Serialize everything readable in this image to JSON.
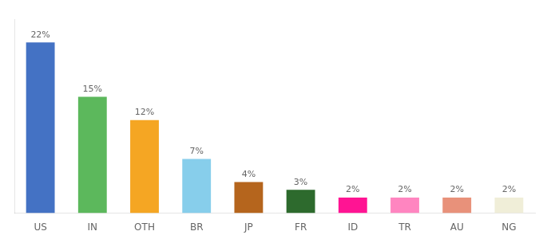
{
  "chart_data": {
    "type": "bar",
    "categories": [
      "US",
      "IN",
      "OTH",
      "BR",
      "JP",
      "FR",
      "ID",
      "TR",
      "AU",
      "NG"
    ],
    "values": [
      22,
      15,
      12,
      7,
      4,
      3,
      2,
      2,
      2,
      2
    ],
    "value_labels": [
      "22%",
      "15%",
      "12%",
      "7%",
      "4%",
      "3%",
      "2%",
      "2%",
      "2%",
      "2%"
    ],
    "colors": [
      "#4472c4",
      "#5cb85c",
      "#f5a623",
      "#87ceeb",
      "#b5651d",
      "#2d6a2d",
      "#ff1493",
      "#ff85c0",
      "#e8917a",
      "#f0eed8"
    ],
    "ylim": [
      0,
      25
    ],
    "data_labels": true,
    "tick_labels": "x",
    "grid": false
  }
}
